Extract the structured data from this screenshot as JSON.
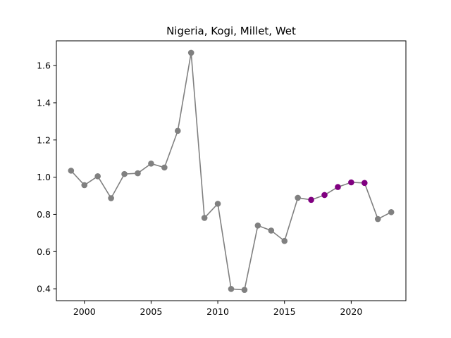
{
  "chart_data": {
    "type": "line",
    "title": "Nigeria, Kogi, Millet, Wet",
    "xlabel": "",
    "ylabel": "",
    "xlim": [
      1997.9,
      2024.1
    ],
    "ylim": [
      0.336,
      1.733
    ],
    "grid": false,
    "x_ticks": [
      2000,
      2005,
      2010,
      2015,
      2020
    ],
    "y_ticks": [
      0.4,
      0.6,
      0.8,
      1.0,
      1.2,
      1.4,
      1.6
    ],
    "x_tick_labels": [
      "2000",
      "2005",
      "2010",
      "2015",
      "2020"
    ],
    "y_tick_labels": [
      "0.4",
      "0.6",
      "0.8",
      "1.0",
      "1.2",
      "1.4",
      "1.6"
    ],
    "line_color": "#808080",
    "point_color": "#808080",
    "highlight_color": "#800080",
    "series": [
      {
        "x": [
          1999,
          2000,
          2001,
          2002,
          2003,
          2004,
          2005,
          2006,
          2007,
          2008,
          2009,
          2010,
          2011,
          2012,
          2013,
          2014,
          2015,
          2016,
          2017,
          2018,
          2019,
          2020,
          2021,
          2022,
          2023
        ],
        "y": [
          1.035,
          0.957,
          1.005,
          0.887,
          1.017,
          1.021,
          1.073,
          1.052,
          1.249,
          1.669,
          0.781,
          0.857,
          0.399,
          0.394,
          0.74,
          0.713,
          0.657,
          0.889,
          0.878,
          0.904,
          0.947,
          0.972,
          0.969,
          0.775,
          0.812
        ],
        "highlighted": [
          false,
          false,
          false,
          false,
          false,
          false,
          false,
          false,
          false,
          false,
          false,
          false,
          false,
          false,
          false,
          false,
          false,
          false,
          true,
          true,
          true,
          true,
          true,
          false,
          false
        ]
      }
    ]
  }
}
